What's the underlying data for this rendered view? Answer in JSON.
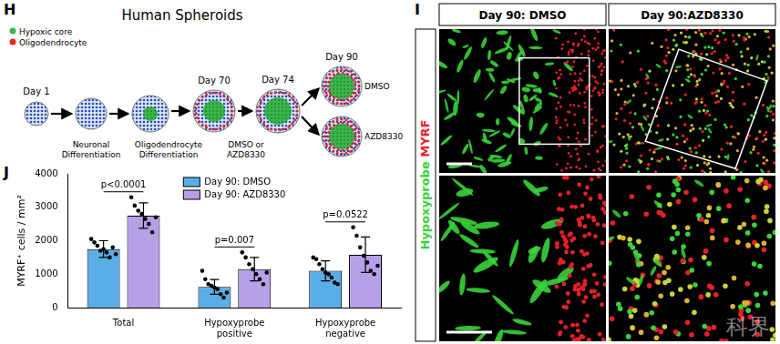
{
  "panels": {
    "H": {
      "letter": "H",
      "title": "Human Spheroids",
      "legend": [
        {
          "label": "Hypoxic core",
          "color": "#39b54a"
        },
        {
          "label": "Oligodendrocyte",
          "color": "#e3262a"
        }
      ],
      "days": [
        "Day 1",
        "Day 70",
        "Day 74",
        "Day 90"
      ],
      "steps": [
        [
          "Neuronal",
          "Differentiation"
        ],
        [
          "Oligodendrocyte",
          "Differentiation"
        ],
        [
          "DMSO or",
          "AZD8330"
        ]
      ],
      "outcomes": [
        "DMSO",
        "AZD8330"
      ]
    },
    "I": {
      "letter": "I",
      "columns": [
        "Day 90: DMSO",
        "Day 90:AZD8330"
      ],
      "stains": [
        {
          "label": "Hypoxyprobe",
          "color": "#38d43a"
        },
        {
          "label": "MYRF",
          "color": "#e8202a"
        }
      ],
      "watermark": "科界"
    },
    "J": {
      "letter": "J"
    }
  },
  "chart_data": {
    "type": "bar",
    "y_label": "MYRF⁺ cells / mm²",
    "categories": [
      "Total",
      [
        "Hypoxyprobe",
        "positive"
      ],
      [
        "Hypoxyprobe",
        "negative"
      ]
    ],
    "series": [
      {
        "name": "Day 90: DMSO",
        "color": "#5aaee8",
        "values": [
          1750,
          620,
          1100
        ],
        "errors": [
          250,
          220,
          300
        ],
        "points": [
          [
            2050,
            1950,
            1850,
            1700,
            1750,
            1650,
            1500,
            1800,
            1600
          ],
          [
            1100,
            850,
            700,
            650,
            600,
            550,
            400,
            300,
            450
          ],
          [
            1500,
            1450,
            1300,
            1150,
            1050,
            1000,
            900,
            750,
            700
          ]
        ]
      },
      {
        "name": "Day 90: AZD8330",
        "color": "#b6a0e8",
        "values": [
          2750,
          1150,
          1580
        ],
        "errors": [
          380,
          350,
          530
        ],
        "points": [
          [
            3300,
            3050,
            2900,
            2800,
            2650,
            2500,
            2250,
            2700
          ],
          [
            1650,
            1500,
            1300,
            1150,
            1000,
            850,
            700,
            1050
          ],
          [
            2400,
            2150,
            1800,
            1550,
            1350,
            1100,
            1000,
            1250
          ]
        ]
      }
    ],
    "annotations": [
      {
        "text": "p<0.0001",
        "category": 0
      },
      {
        "text": "p=0.007",
        "category": 1
      },
      {
        "text": "p=0.0522",
        "category": 2
      }
    ],
    "ylim": [
      0,
      4000
    ],
    "yticks": [
      0,
      1000,
      2000,
      3000,
      4000
    ],
    "grid": false,
    "legend": "upper center"
  }
}
